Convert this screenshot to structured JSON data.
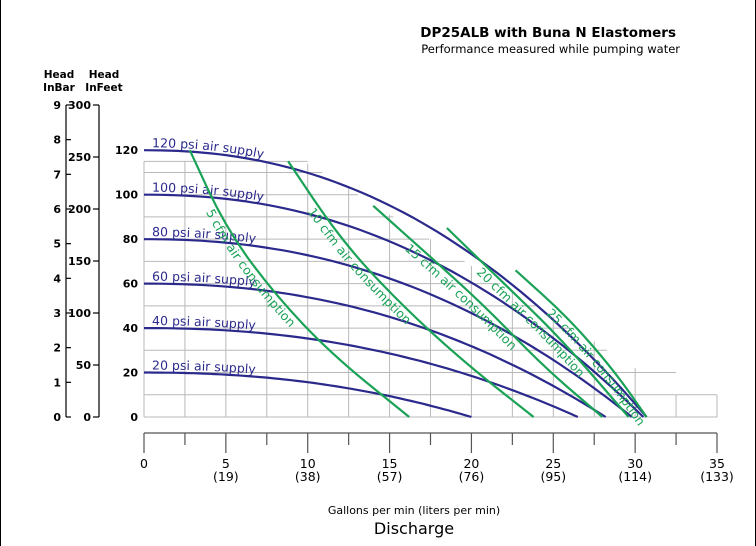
{
  "chart_data": {
    "type": "line",
    "title": "DP25ALB with Buna N Elastomers",
    "subtitle": "Performance measured while pumping water",
    "xlabel": "Gallons per min (liters per min)",
    "xlabel2": "Discharge",
    "ylabel_bar": "Head\nInBar",
    "ylabel_feet": "Head\nInFeet",
    "xlim": [
      0,
      35
    ],
    "ylim": [
      0,
      130
    ],
    "x_ticks": [
      {
        "value": 0,
        "label": "0",
        "sub": ""
      },
      {
        "value": 5,
        "label": "5",
        "sub": "(19)"
      },
      {
        "value": 10,
        "label": "10",
        "sub": "(38)"
      },
      {
        "value": 15,
        "label": "15",
        "sub": "(57)"
      },
      {
        "value": 20,
        "label": "20",
        "sub": "(76)"
      },
      {
        "value": 25,
        "label": "25",
        "sub": "(95)"
      },
      {
        "value": 30,
        "label": "30",
        "sub": "(114)"
      },
      {
        "value": 35,
        "label": "35",
        "sub": "(133)"
      }
    ],
    "y_ticks_psi": [
      0,
      20,
      40,
      60,
      80,
      100,
      120
    ],
    "y_ticks_feet": [
      {
        "value": 0,
        "label": "0"
      },
      {
        "value": 50,
        "label": "50"
      },
      {
        "value": 100,
        "label": "100"
      },
      {
        "value": 150,
        "label": "150"
      },
      {
        "value": 200,
        "label": "200"
      },
      {
        "value": 250,
        "label": "250"
      },
      {
        "value": 300,
        "label": "300"
      }
    ],
    "y_ticks_bar": [
      0,
      1,
      2,
      3,
      4,
      5,
      6,
      7,
      8,
      9
    ],
    "colors": {
      "pressure": "#2b2a8c",
      "air": "#1aa257",
      "grid": "#b9b9b9",
      "text": "#000000"
    },
    "pressure_series": [
      {
        "name": "120 psi air supply",
        "shutoff": 120,
        "max_flow": 30.7
      },
      {
        "name": "100 psi air supply",
        "shutoff": 100,
        "max_flow": 30.5
      },
      {
        "name": "80 psi air supply",
        "shutoff": 80,
        "max_flow": 29.8
      },
      {
        "name": "60 psi air supply",
        "shutoff": 60,
        "max_flow": 28.2
      },
      {
        "name": "40 psi air supply",
        "shutoff": 40,
        "max_flow": 26.5
      },
      {
        "name": "20 psi air supply",
        "shutoff": 20,
        "max_flow": 20.0
      }
    ],
    "air_series": [
      {
        "name": "5 cfm air consumption",
        "points": [
          [
            2.8,
            120
          ],
          [
            5.0,
            85
          ],
          [
            8.0,
            55
          ],
          [
            11.5,
            28
          ],
          [
            16.2,
            0
          ]
        ]
      },
      {
        "name": "10 cfm air consumption",
        "points": [
          [
            8.8,
            115
          ],
          [
            12.0,
            80
          ],
          [
            15.5,
            52
          ],
          [
            19.5,
            25
          ],
          [
            23.8,
            0
          ]
        ]
      },
      {
        "name": "15 cfm air consumption",
        "points": [
          [
            14.0,
            95
          ],
          [
            17.5,
            72
          ],
          [
            20.8,
            50
          ],
          [
            24.5,
            22
          ],
          [
            28.0,
            0
          ]
        ]
      },
      {
        "name": "20 cfm air consumption",
        "points": [
          [
            18.5,
            85
          ],
          [
            22.0,
            60
          ],
          [
            25.5,
            35
          ],
          [
            29.6,
            0
          ]
        ]
      },
      {
        "name": "25 cfm air consumption",
        "points": [
          [
            22.7,
            66
          ],
          [
            26.0,
            44
          ],
          [
            28.8,
            20
          ],
          [
            30.7,
            0
          ]
        ]
      }
    ]
  }
}
